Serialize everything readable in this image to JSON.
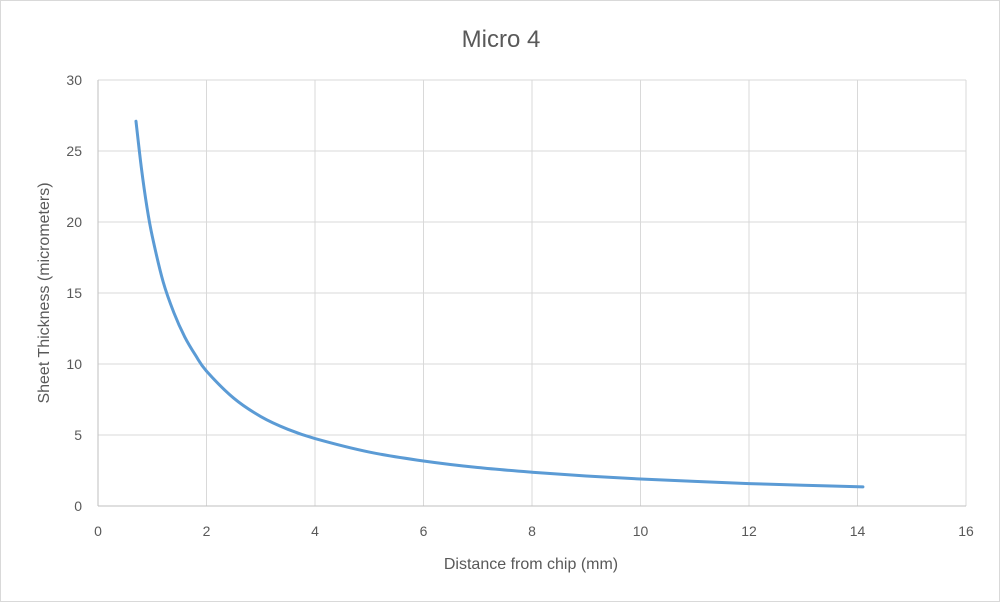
{
  "chart_data": {
    "type": "line",
    "title": "Micro 4",
    "xlabel": "Distance from chip (mm)",
    "ylabel": "Sheet Thickness (micrometers)",
    "xlim": [
      0,
      16
    ],
    "ylim": [
      0,
      30
    ],
    "x_ticks": [
      "0",
      "2",
      "4",
      "6",
      "8",
      "10",
      "12",
      "14",
      "16"
    ],
    "y_ticks": [
      "0",
      "5",
      "10",
      "15",
      "20",
      "25",
      "30"
    ],
    "grid": true,
    "legend": "none",
    "series": [
      {
        "color": "#5b9bd5",
        "x": [
          0.7,
          0.8,
          0.9,
          1.0,
          1.2,
          1.4,
          1.6,
          1.8,
          2.0,
          2.5,
          3.0,
          3.5,
          4.0,
          5.0,
          6.0,
          7.0,
          8.0,
          9.0,
          10.0,
          11.0,
          12.0,
          13.0,
          14.1
        ],
        "y": [
          27.1,
          23.8,
          21.1,
          19.0,
          15.8,
          13.6,
          11.9,
          10.6,
          9.5,
          7.6,
          6.3,
          5.4,
          4.75,
          3.8,
          3.17,
          2.71,
          2.38,
          2.11,
          1.9,
          1.73,
          1.58,
          1.46,
          1.35
        ]
      }
    ]
  }
}
